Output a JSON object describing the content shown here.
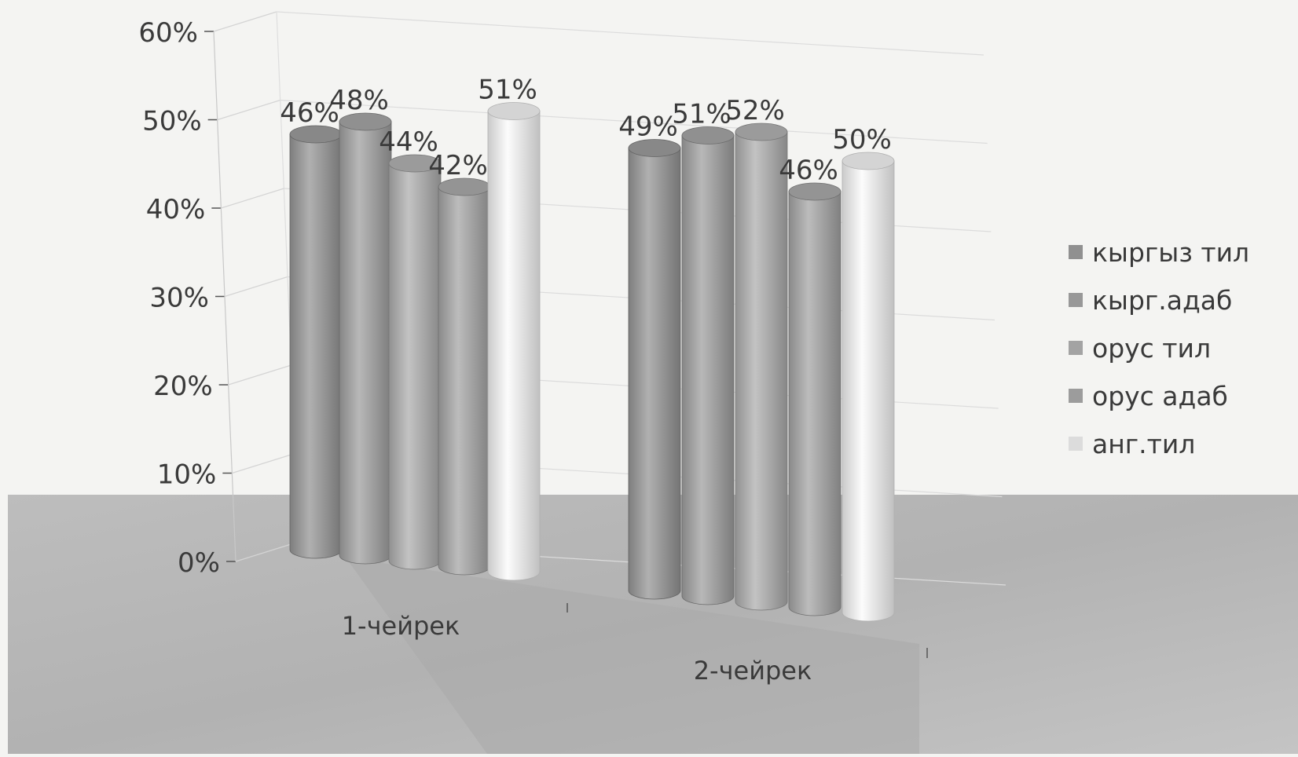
{
  "chart_data": {
    "type": "bar",
    "style": "3d-cylinder",
    "categories": [
      "1-чейрек",
      "2-чейрек"
    ],
    "series": [
      {
        "name": "кыргыз тил",
        "values": [
          46,
          49
        ],
        "labels": [
          "46%",
          "49%"
        ]
      },
      {
        "name": "кырг.адаб",
        "values": [
          48,
          51
        ],
        "labels": [
          "48%",
          "51%"
        ]
      },
      {
        "name": "орус тил",
        "values": [
          44,
          52
        ],
        "labels": [
          "44%",
          "52%"
        ]
      },
      {
        "name": "орус адаб",
        "values": [
          42,
          46
        ],
        "labels": [
          "42%",
          "46%"
        ]
      },
      {
        "name": "анг.тил",
        "values": [
          51,
          50
        ],
        "labels": [
          "51%",
          "50%"
        ]
      }
    ],
    "ylim": [
      0,
      60
    ],
    "yticks": [
      "0%",
      "10%",
      "20%",
      "30%",
      "40%",
      "50%",
      "60%"
    ],
    "grid": true,
    "legend_position": "right",
    "colors": {
      "кыргыз тил": "#9a9a9a",
      "кырг.адаб": "#a2a2a2",
      "орус тил": "#adadad",
      "орус адаб": "#a6a6a6",
      "анг.тил": "#e6e6e6"
    }
  }
}
